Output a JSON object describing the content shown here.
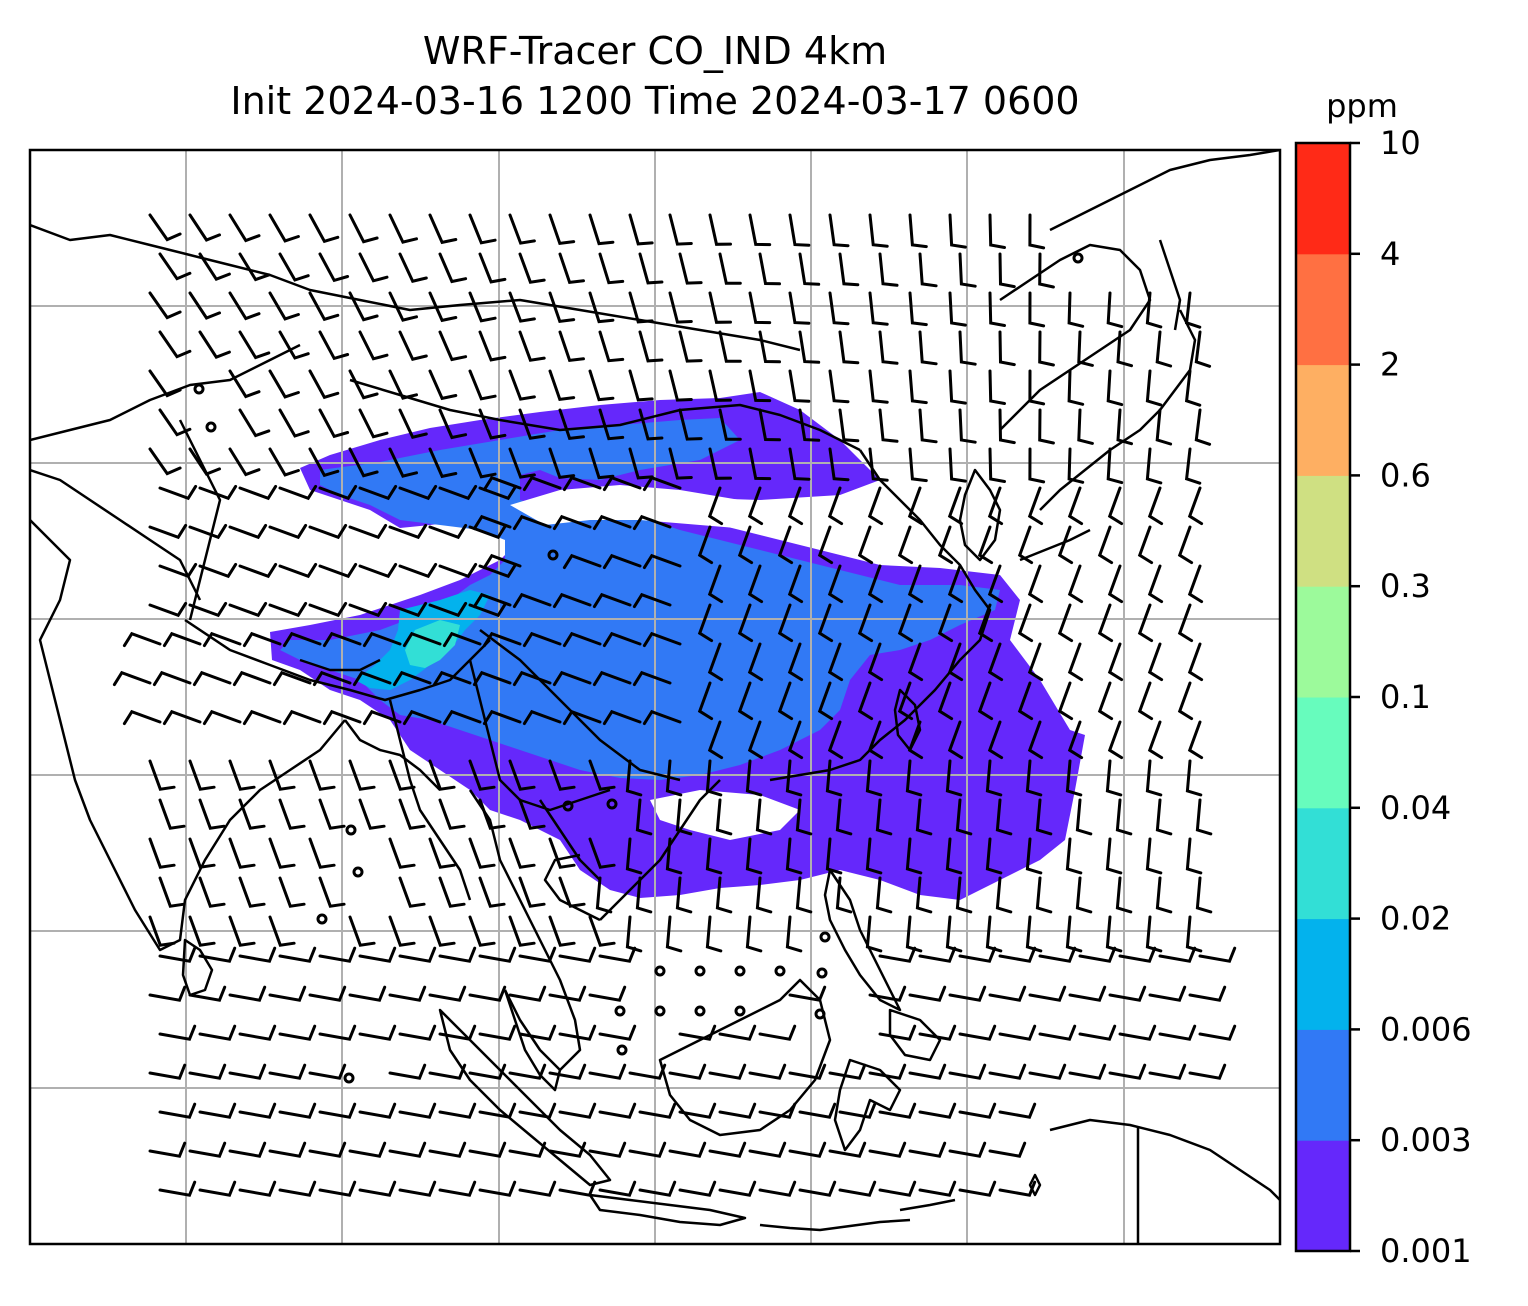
{
  "title": {
    "line1": "WRF-Tracer CO_IND 4km",
    "line2": "Init 2024-03-16 1200 Time 2024-03-17 0600"
  },
  "colorbar": {
    "unit": "ppm",
    "ticks": [
      "0.001",
      "0.003",
      "0.006",
      "0.02",
      "0.04",
      "0.1",
      "0.3",
      "0.6",
      "2",
      "4",
      "10"
    ],
    "colors": [
      "#6528fb",
      "#3179f5",
      "#03b2ed",
      "#32dfd6",
      "#67fcbd",
      "#9cfa9b",
      "#cfe082",
      "#feaf62",
      "#ff7042",
      "#ff2a17"
    ]
  },
  "map": {
    "gridlines": true,
    "gridline_color": "#b0b0b0",
    "coastline_color": "#000000",
    "plume_colors_present": [
      "0.001–0.003",
      "0.003–0.006",
      "0.006–0.02",
      "0.02–0.04"
    ]
  }
}
